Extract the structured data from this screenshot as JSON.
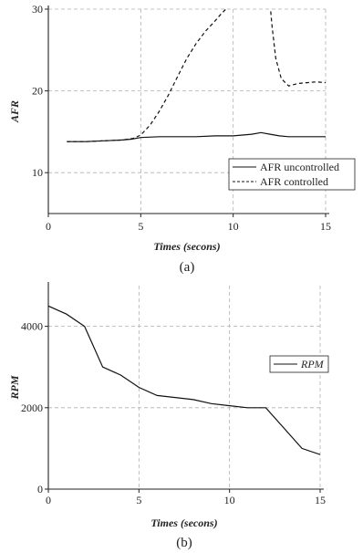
{
  "chart_data": [
    {
      "type": "line",
      "caption": "(a)",
      "xlabel": "Times (secons)",
      "ylabel": "AFR",
      "xlim": [
        0,
        15
      ],
      "ylim": [
        5,
        30
      ],
      "xticks": [
        0,
        5,
        10,
        15
      ],
      "yticks": [
        10,
        20,
        30
      ],
      "grid": true,
      "legend_position": "bottom-right",
      "series": [
        {
          "name": "AFR uncontrolled",
          "style": "solid",
          "x": [
            1,
            2,
            3,
            4,
            4.5,
            5,
            6,
            7,
            8,
            9,
            10,
            10.5,
            11,
            11.5,
            12,
            12.5,
            13,
            14,
            15
          ],
          "y": [
            13.8,
            13.8,
            13.9,
            14.0,
            14.1,
            14.3,
            14.4,
            14.4,
            14.4,
            14.5,
            14.5,
            14.6,
            14.7,
            14.9,
            14.7,
            14.5,
            14.4,
            14.4,
            14.4
          ]
        },
        {
          "name": "AFR controlled",
          "style": "dashed",
          "segments": [
            {
              "x": [
                1,
                2,
                3,
                4,
                4.6,
                5,
                5.5,
                6,
                6.5,
                7,
                7.5,
                8,
                8.5,
                9,
                9.3,
                9.6,
                9.75
              ],
              "y": [
                13.8,
                13.8,
                13.9,
                14.0,
                14.2,
                14.6,
                15.8,
                17.5,
                19.5,
                21.8,
                24.0,
                25.8,
                27.3,
                28.5,
                29.3,
                30.0,
                30.5
              ]
            },
            {
              "x": [
                12.0,
                12.1,
                12.3,
                12.6,
                13.0,
                13.5,
                14.0,
                14.5,
                15.0
              ],
              "y": [
                30.5,
                28.0,
                24.0,
                21.5,
                20.6,
                20.9,
                21.0,
                21.1,
                21.0
              ]
            }
          ]
        }
      ]
    },
    {
      "type": "line",
      "caption": "(b)",
      "xlabel": "Times (secons)",
      "ylabel": "RPM",
      "xlim": [
        0,
        15
      ],
      "ylim": [
        0,
        5000
      ],
      "xticks": [
        0,
        5,
        10,
        15
      ],
      "yticks": [
        0,
        2000,
        4000
      ],
      "grid": true,
      "legend_position": "right",
      "series": [
        {
          "name": "RPM",
          "style": "solid",
          "x": [
            0,
            1,
            2,
            3,
            4,
            5,
            6,
            7,
            8,
            9,
            10,
            11,
            12,
            13,
            14,
            15
          ],
          "y": [
            4500,
            4300,
            4000,
            3000,
            2800,
            2500,
            2300,
            2250,
            2200,
            2100,
            2050,
            2000,
            2000,
            1500,
            1000,
            850
          ]
        }
      ]
    }
  ]
}
